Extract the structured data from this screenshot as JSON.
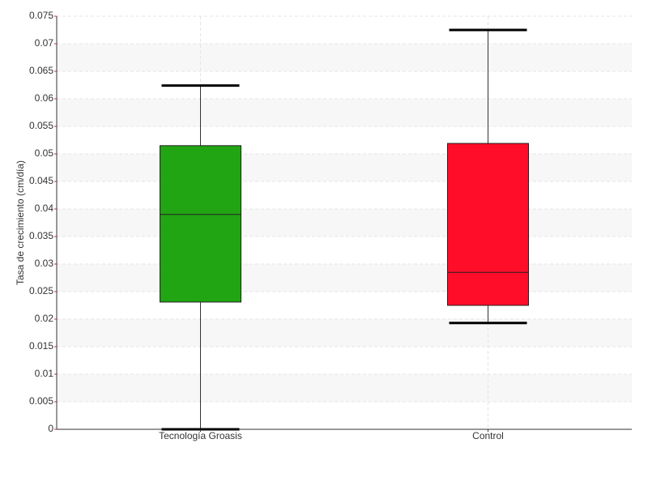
{
  "chart_data": {
    "type": "box",
    "y_label": "Tasa de crecimiento (cm/día)",
    "categories": [
      "Tecnología Groasis",
      "Control"
    ],
    "colors": [
      "#22a512",
      "#ff0d29"
    ],
    "min": [
      0,
      0.0193
    ],
    "q1": [
      0.0231,
      0.0225
    ],
    "median": [
      0.039,
      0.0285
    ],
    "q3": [
      0.0515,
      0.0519
    ],
    "max": [
      0.0624,
      0.0725
    ],
    "ylim": [
      0,
      0.075
    ],
    "yticks": [
      0,
      0.005,
      0.01,
      0.015,
      0.02,
      0.025,
      0.03,
      0.035,
      0.04,
      0.045,
      0.05,
      0.055,
      0.06,
      0.065,
      0.07,
      0.075
    ],
    "grid": true
  }
}
